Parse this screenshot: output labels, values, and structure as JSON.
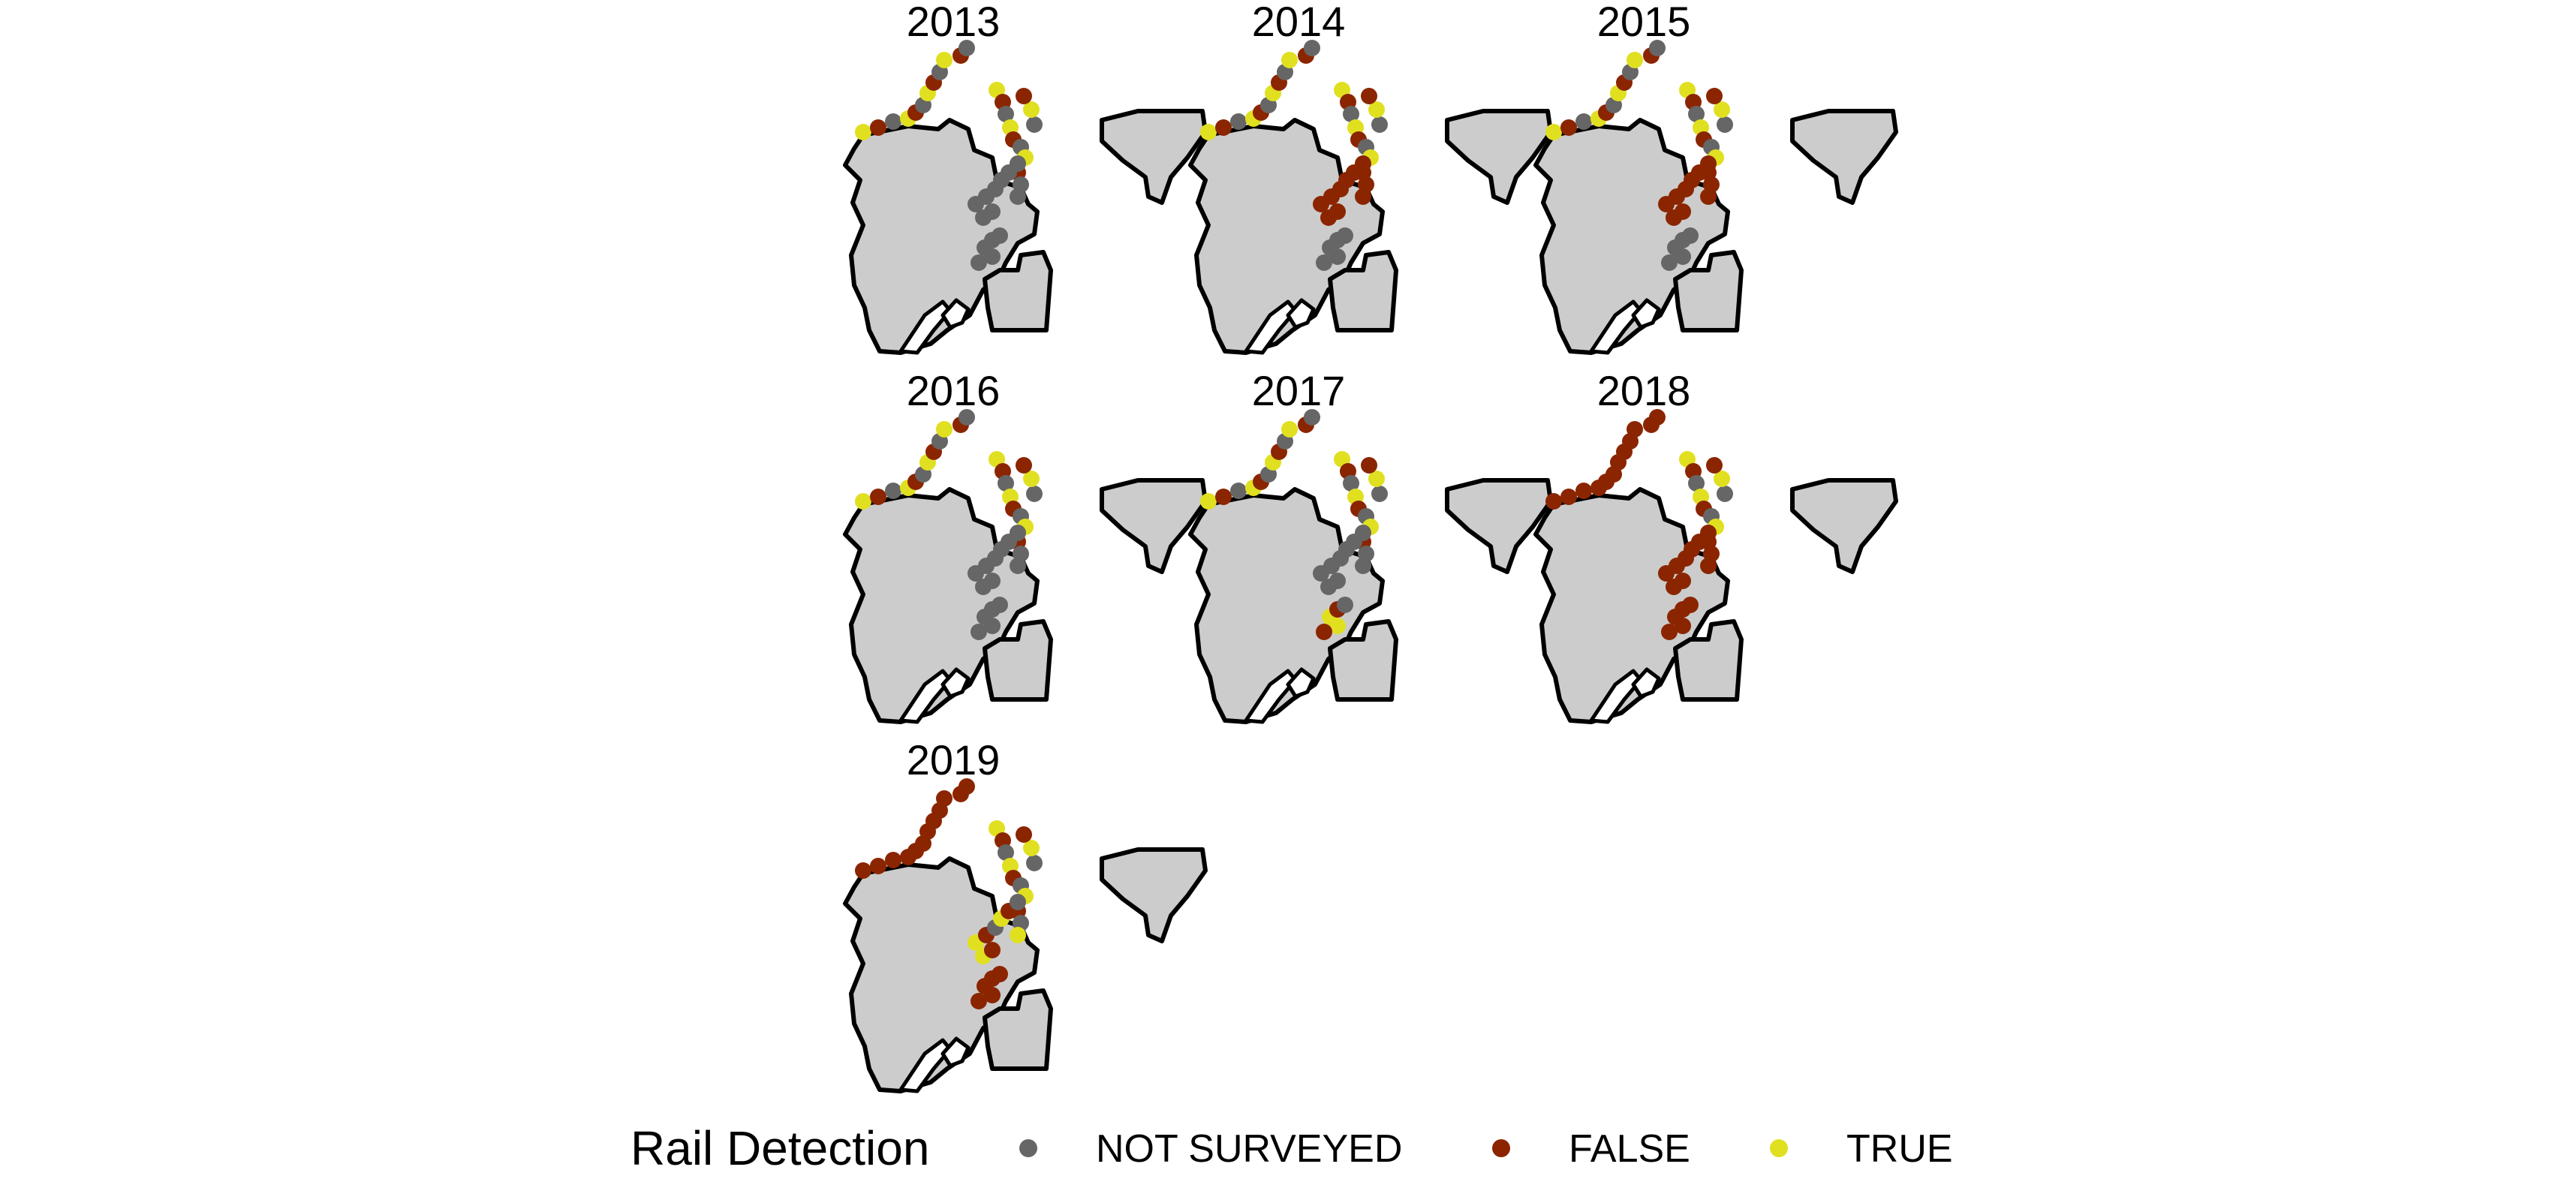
{
  "legend": {
    "title": "Rail Detection",
    "items": [
      {
        "key": "not_surveyed",
        "label": "NOT SURVEYED",
        "color": "#666666"
      },
      {
        "key": "false",
        "label": "FALSE",
        "color": "#8b2500"
      },
      {
        "key": "true",
        "label": "TRUE",
        "color": "#e0e020"
      }
    ]
  },
  "panels": [
    {
      "year": "2013",
      "sites": {
        "north_marsh": "mixed",
        "east_marsh": "mixed",
        "central_marsh": "not_surveyed",
        "south_marsh": "not_surveyed"
      }
    },
    {
      "year": "2014",
      "sites": {
        "north_marsh": "mixed",
        "east_marsh": "mixed",
        "central_marsh": "false",
        "south_marsh": "not_surveyed"
      }
    },
    {
      "year": "2015",
      "sites": {
        "north_marsh": "mixed",
        "east_marsh": "mixed",
        "central_marsh": "false",
        "south_marsh": "not_surveyed"
      }
    },
    {
      "year": "2016",
      "sites": {
        "north_marsh": "mixed",
        "east_marsh": "mixed",
        "central_marsh": "not_surveyed",
        "south_marsh": "not_surveyed"
      }
    },
    {
      "year": "2017",
      "sites": {
        "north_marsh": "mixed",
        "east_marsh": "mixed",
        "central_marsh": "not_surveyed",
        "south_marsh": "mixed"
      }
    },
    {
      "year": "2018",
      "sites": {
        "north_marsh": "false",
        "east_marsh": "mixed",
        "central_marsh": "false",
        "south_marsh": "false"
      }
    },
    {
      "year": "2019",
      "sites": {
        "north_marsh": "false",
        "east_marsh": "mixed",
        "central_marsh": "mixed",
        "south_marsh": "false"
      }
    }
  ]
}
